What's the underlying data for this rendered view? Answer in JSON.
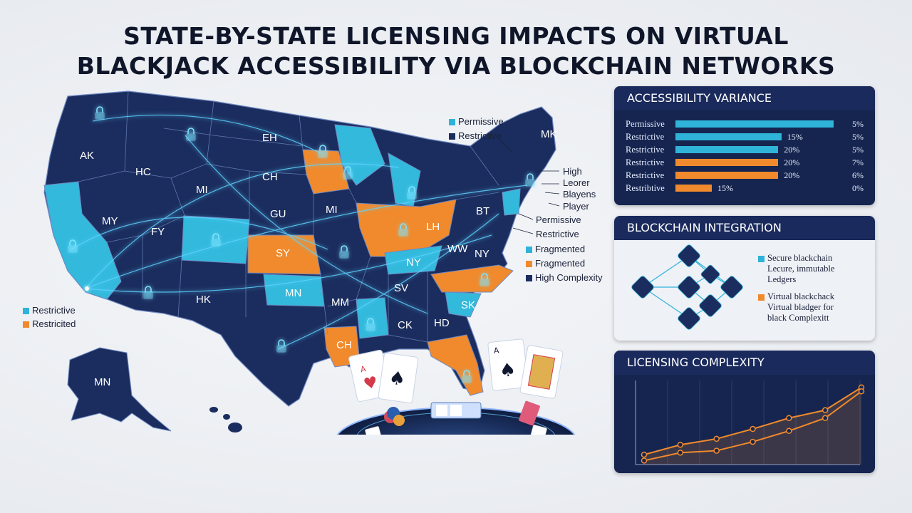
{
  "title": {
    "line1": "STATE-BY-STATE LICENSING IMPACTS ON VIRTUAL",
    "line2": "BLACKJACK ACCESSIBILITY VIA BLOCKCHAIN NETWORKS"
  },
  "colors": {
    "navy": "#1b2d5e",
    "dark_navy": "#15254f",
    "cyan": "#2fb3d9",
    "orange": "#f08a2c"
  },
  "map": {
    "state_codes": [
      "AK",
      "HC",
      "EH",
      "CH",
      "MI",
      "MY",
      "FY",
      "GU",
      "MI",
      "SY",
      "MN",
      "HK",
      "MM",
      "SV",
      "NY",
      "WW",
      "NY",
      "BT",
      "LH",
      "CK",
      "HD",
      "SK",
      "CH",
      "MK",
      "MN"
    ],
    "legend_top": [
      {
        "label": "Permissive",
        "color": "#2fb3d9"
      },
      {
        "label": "Restrictive",
        "color": "#1b2d5e"
      }
    ],
    "callouts_right": [
      "High",
      "Leorer",
      "Blayens",
      "Player"
    ],
    "legend_right": [
      {
        "label": "Permissive",
        "swatch": false
      },
      {
        "label": "Restrictive",
        "swatch": false
      },
      {
        "label": "Fragmented",
        "color": "#2fb3d9"
      },
      {
        "label": "Fragmented",
        "color": "#f08a2c"
      },
      {
        "label": "High Complexity",
        "color": "#1b2d5e"
      }
    ],
    "legend_left": [
      {
        "label": "Restrictive",
        "color": "#2fb3d9"
      },
      {
        "label": "Restricited",
        "color": "#f08a2c"
      }
    ]
  },
  "accessibility_panel": {
    "heading": "ACCESSIBILITY VARIANCE",
    "rows": [
      {
        "label": "Permissive",
        "bar_value": 100,
        "color": "#2fb3d9",
        "pct": "",
        "value": "5%"
      },
      {
        "label": "Restrictive",
        "bar_value": 67,
        "color": "#2fb3d9",
        "pct": "15%",
        "value": "5%"
      },
      {
        "label": "Restrictive",
        "bar_value": 65,
        "color": "#2fb3d9",
        "pct": "20%",
        "value": "5%"
      },
      {
        "label": "Restrictive",
        "bar_value": 65,
        "color": "#f08a2c",
        "pct": "20%",
        "value": "7%"
      },
      {
        "label": "Restrictive",
        "bar_value": 65,
        "color": "#f08a2c",
        "pct": "20%",
        "value": "6%"
      },
      {
        "label": "Restribtive",
        "bar_value": 23,
        "color": "#f08a2c",
        "pct": "15%",
        "value": "0%"
      }
    ]
  },
  "blockchain_panel": {
    "heading": "BLOCKCHAIN INTEGRATION",
    "item1": {
      "line1": "Secure blackchain",
      "line2": "Lecure, immutable",
      "line3": "Ledgers",
      "color": "#2fb3d9"
    },
    "item2": {
      "line1": "Virtual blackchack",
      "line2": "Virtual bladger for",
      "line3": "black Complexitt",
      "color": "#f08a2c"
    }
  },
  "complexity_panel": {
    "heading": "LICENSING COMPLEXITY",
    "line_color": "#f08a2c"
  },
  "chart_data": {
    "type": "line",
    "title": "LICENSING COMPLEXITY",
    "xlabel": "",
    "ylabel": "",
    "grid": true,
    "x": [
      0,
      1,
      2,
      3,
      4,
      5,
      6
    ],
    "series": [
      {
        "values": [
          1,
          2,
          2.6,
          3.6,
          4.7,
          5.5,
          7.8
        ]
      },
      {
        "values": [
          0.4,
          1.2,
          1.4,
          2.3,
          3.4,
          4.7,
          7.4
        ]
      }
    ],
    "ylim": [
      0,
      8.5
    ]
  }
}
